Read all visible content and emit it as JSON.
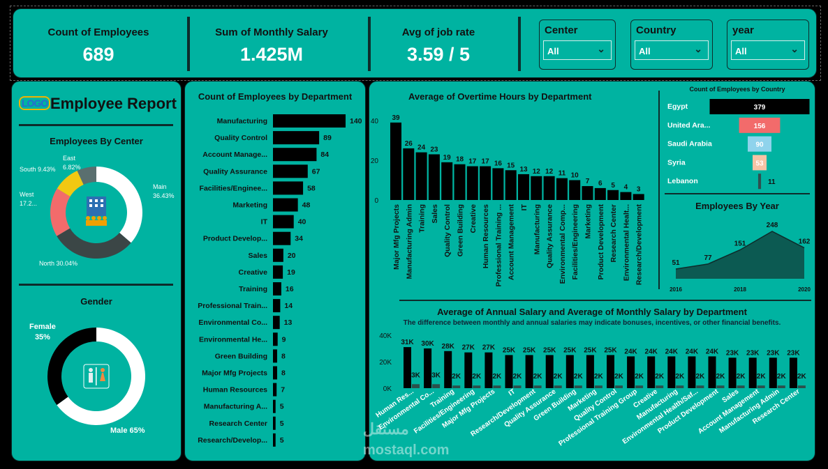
{
  "kpis": [
    {
      "label": "Count of Employees",
      "value": "689"
    },
    {
      "label": "Sum of Monthly Salary",
      "value": "1.425M"
    },
    {
      "label": "Avg of job rate",
      "value": "3.59 / 5"
    }
  ],
  "slicers": [
    {
      "label": "Center",
      "value": "All"
    },
    {
      "label": "Country",
      "value": "All"
    },
    {
      "label": "year",
      "value": "All"
    }
  ],
  "report": {
    "logo_text": "LOGO",
    "title": "Employee Report"
  },
  "colors": {
    "panel": "#00b3a1",
    "dark": "#000000",
    "border": "#0e2c2b"
  },
  "watermark": {
    "arabic": "مستقل",
    "latin": "mostaql.com"
  },
  "chart_data": [
    {
      "id": "center",
      "type": "pie",
      "title": "Employees By Center",
      "slices": [
        {
          "name": "Main",
          "label": "Main",
          "pct": "36.43%",
          "value": 36.43,
          "color": "#ffffff"
        },
        {
          "name": "North",
          "label": "North 30.04%",
          "pct": "",
          "value": 30.04,
          "color": "#3b4646"
        },
        {
          "name": "West",
          "label": "West",
          "pct": "17.2...",
          "value": 17.28,
          "color": "#f26b6b"
        },
        {
          "name": "South",
          "label": "South 9.43%",
          "pct": "",
          "value": 9.43,
          "color": "#f2c812"
        },
        {
          "name": "East",
          "label": "East",
          "pct": "6.82%",
          "value": 6.82,
          "color": "#5a6f6f"
        }
      ]
    },
    {
      "id": "gender",
      "type": "pie",
      "title": "Gender",
      "slices": [
        {
          "name": "Male",
          "label": "Male 65%",
          "value": 65,
          "color": "#ffffff"
        },
        {
          "name": "Female",
          "label": "Female",
          "pct": "35%",
          "value": 35,
          "color": "#000000"
        }
      ]
    },
    {
      "id": "dept_count",
      "type": "bar",
      "orientation": "horizontal",
      "title": "Count of Employees by Department",
      "categories": [
        "Manufacturing",
        "Quality Control",
        "Account Manage...",
        "Quality Assurance",
        "Facilities/Enginee...",
        "Marketing",
        "IT",
        "Product Develop...",
        "Sales",
        "Creative",
        "Training",
        "Professional Train...",
        "Environmental Co...",
        "Environmental He...",
        "Green Building",
        "Major Mfg Projects",
        "Human Resources",
        "Manufacturing A...",
        "Research Center",
        "Research/Develop..."
      ],
      "values": [
        140,
        89,
        84,
        67,
        58,
        48,
        40,
        34,
        20,
        19,
        16,
        14,
        13,
        9,
        8,
        8,
        7,
        5,
        5,
        5
      ]
    },
    {
      "id": "overtime",
      "type": "bar",
      "title": "Average of Overtime Hours by Department",
      "categories": [
        "Major Mfg Projects",
        "Manufacturing Admin",
        "Training",
        "Sales",
        "Quality Control",
        "Green Building",
        "Creative",
        "Human Resources",
        "Professional Training ...",
        "Account Management",
        "IT",
        "Manufacturing",
        "Quality Assurance",
        "Environmental Comp...",
        "Facilities/Engineering",
        "Marketing",
        "Product Development",
        "Research Center",
        "Environmental Healt...",
        "Research/Development"
      ],
      "values": [
        39,
        26,
        24,
        23,
        19,
        18,
        17,
        17,
        16,
        15,
        13,
        12,
        12,
        11,
        10,
        7,
        6,
        5,
        4,
        3
      ],
      "yticks": [
        "0",
        "20",
        "40"
      ],
      "ylim": [
        0,
        40
      ]
    },
    {
      "id": "country",
      "type": "bar",
      "orientation": "horizontal",
      "title": "Count of Employees by Country",
      "categories": [
        "Egypt",
        "United Ara...",
        "Saudi Arabia",
        "Syria",
        "Lebanon"
      ],
      "values": [
        379,
        156,
        90,
        53,
        11
      ],
      "colors": [
        "#000000",
        "#f26b6b",
        "#8fd3ec",
        "#f6c3a5",
        "#2f4f4f"
      ]
    },
    {
      "id": "year",
      "type": "area",
      "title": "Employees By Year",
      "x": [
        "2016",
        "2017",
        "2018",
        "2019",
        "2020"
      ],
      "values": [
        51,
        77,
        151,
        248,
        162
      ],
      "xtick_labels": [
        "2016",
        "2018",
        "2020"
      ]
    },
    {
      "id": "salary",
      "type": "bar",
      "title": "Average of Annual Salary and Average of Monthly Salary by Department",
      "subtitle": "The difference between monthly and annual salaries may indicate bonuses, incentives, or other financial benefits.",
      "categories": [
        "Human Res...",
        "Environmental Co...",
        "Training",
        "Facilities/Engineering",
        "Major Mfg Projects",
        "IT",
        "Research/Development",
        "Quality Assurance",
        "Green Building",
        "Marketing",
        "Quality Control",
        "Professional Training Group",
        "Creative",
        "Manufacturing",
        "Environmental Health/Saf...",
        "Product Development",
        "Sales",
        "Account Management",
        "Manufacturing Admin",
        "Research Center"
      ],
      "series": [
        {
          "name": "Average of Annual Salary",
          "values": [
            31,
            30,
            28,
            27,
            27,
            25,
            25,
            25,
            25,
            25,
            25,
            24,
            24,
            24,
            24,
            24,
            23,
            23,
            23,
            23
          ],
          "labels": [
            "31K",
            "30K",
            "28K",
            "27K",
            "27K",
            "25K",
            "25K",
            "25K",
            "25K",
            "25K",
            "25K",
            "24K",
            "24K",
            "24K",
            "24K",
            "24K",
            "23K",
            "23K",
            "23K",
            "23K"
          ]
        },
        {
          "name": "Average of Monthly Salary",
          "values": [
            3,
            3,
            2,
            2,
            2,
            2,
            2,
            2,
            2,
            2,
            2,
            2,
            2,
            2,
            2,
            2,
            2,
            2,
            2,
            2
          ],
          "labels": [
            "3K",
            "3K",
            "2K",
            "2K",
            "2K",
            "2K",
            "2K",
            "2K",
            "2K",
            "2K",
            "2K",
            "2K",
            "2K",
            "2K",
            "2K",
            "2K",
            "2K",
            "2K",
            "2K",
            "2K"
          ]
        }
      ],
      "yticks": [
        "0K",
        "20K",
        "40K"
      ],
      "ylim": [
        0,
        40
      ]
    }
  ]
}
